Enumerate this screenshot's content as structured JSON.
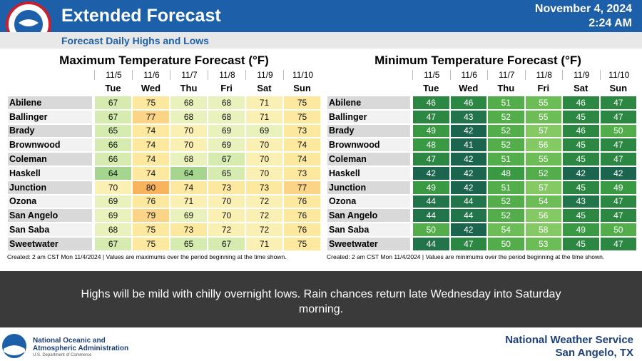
{
  "header": {
    "title": "Extended Forecast",
    "date": "November 4, 2024",
    "time": "2:24 AM",
    "subtitle": "Forecast Daily Highs and Lows"
  },
  "tables": [
    {
      "title": "Maximum Temperature Forecast (°F)",
      "dates": [
        "11/5",
        "11/6",
        "11/7",
        "11/8",
        "11/9",
        "11/10"
      ],
      "days": [
        "Tue",
        "Wed",
        "Thu",
        "Fri",
        "Sat",
        "Sun"
      ],
      "rows": [
        {
          "city": "Abilene",
          "values": [
            67,
            75,
            68,
            68,
            71,
            75
          ]
        },
        {
          "city": "Ballinger",
          "values": [
            67,
            77,
            68,
            68,
            71,
            75
          ]
        },
        {
          "city": "Brady",
          "values": [
            65,
            74,
            70,
            69,
            69,
            73
          ]
        },
        {
          "city": "Brownwood",
          "values": [
            66,
            74,
            70,
            69,
            70,
            74
          ]
        },
        {
          "city": "Coleman",
          "values": [
            66,
            74,
            68,
            67,
            70,
            74
          ]
        },
        {
          "city": "Haskell",
          "values": [
            64,
            74,
            64,
            65,
            70,
            73
          ]
        },
        {
          "city": "Junction",
          "values": [
            70,
            80,
            74,
            73,
            73,
            77
          ]
        },
        {
          "city": "Ozona",
          "values": [
            69,
            76,
            71,
            70,
            72,
            76
          ]
        },
        {
          "city": "San Angelo",
          "values": [
            69,
            79,
            69,
            70,
            72,
            76
          ]
        },
        {
          "city": "San Saba",
          "values": [
            68,
            75,
            73,
            72,
            72,
            76
          ]
        },
        {
          "city": "Sweetwater",
          "values": [
            67,
            75,
            65,
            67,
            71,
            75
          ]
        }
      ],
      "note": "Created: 2 am CST Mon 11/4/2024  |  Values are maximums over the period beginning at the time shown."
    },
    {
      "title": "Minimum Temperature Forecast (°F)",
      "dates": [
        "11/5",
        "11/6",
        "11/7",
        "11/8",
        "11/9",
        "11/10"
      ],
      "days": [
        "Tue",
        "Wed",
        "Thu",
        "Fri",
        "Sat",
        "Sun"
      ],
      "rows": [
        {
          "city": "Abilene",
          "values": [
            46,
            46,
            51,
            55,
            46,
            47
          ]
        },
        {
          "city": "Ballinger",
          "values": [
            47,
            43,
            52,
            55,
            45,
            47
          ]
        },
        {
          "city": "Brady",
          "values": [
            49,
            42,
            52,
            57,
            46,
            50
          ]
        },
        {
          "city": "Brownwood",
          "values": [
            48,
            41,
            52,
            56,
            45,
            47
          ]
        },
        {
          "city": "Coleman",
          "values": [
            47,
            42,
            51,
            55,
            45,
            47
          ]
        },
        {
          "city": "Haskell",
          "values": [
            42,
            42,
            48,
            52,
            42,
            42
          ]
        },
        {
          "city": "Junction",
          "values": [
            49,
            42,
            51,
            57,
            45,
            49
          ]
        },
        {
          "city": "Ozona",
          "values": [
            44,
            44,
            52,
            54,
            43,
            47
          ]
        },
        {
          "city": "San Angelo",
          "values": [
            44,
            44,
            52,
            56,
            45,
            47
          ]
        },
        {
          "city": "San Saba",
          "values": [
            50,
            42,
            54,
            58,
            49,
            50
          ]
        },
        {
          "city": "Sweetwater",
          "values": [
            44,
            47,
            50,
            53,
            45,
            47
          ]
        }
      ],
      "note": "Created: 2 am CST Mon 11/4/2024  |  Values are minimums over the period beginning at the time shown."
    }
  ],
  "banner": "Highs will be mild with chilly overnight lows. Rain chances return late Wednesday into Saturday morning.",
  "footer": {
    "agency_line1": "National Oceanic and",
    "agency_line2": "Atmospheric Administration",
    "department": "U.S. Department of Commerce",
    "office": "National Weather Service",
    "location": "San Angelo, TX"
  }
}
